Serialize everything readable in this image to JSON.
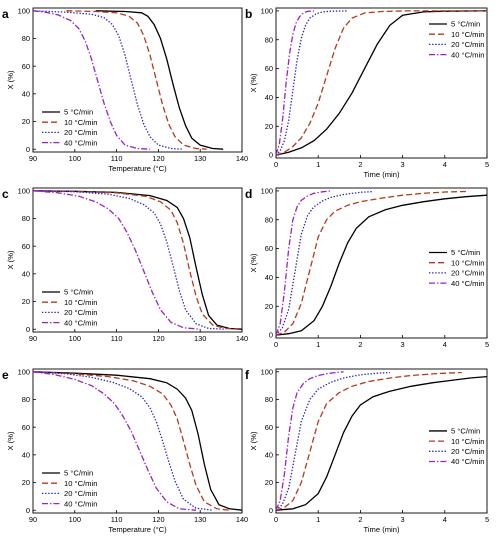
{
  "colors": {
    "s5": "#000000",
    "s10": "#b5391f",
    "s20": "#2424c8",
    "s40": "#9a22c4",
    "axis": "#000000"
  },
  "chart_data": [
    {
      "panel": "a",
      "type": "line",
      "xlabel": "Temperature (°C)",
      "ylabel": "X (%)",
      "xlim": [
        90,
        140
      ],
      "ylim": [
        -2,
        102
      ],
      "xticks": [
        90,
        100,
        110,
        120,
        130,
        140
      ],
      "yticks": [
        0,
        20,
        40,
        60,
        80,
        100
      ],
      "legend": "lower-left",
      "series": [
        {
          "name": "5 °C/min",
          "style": "solid",
          "color": "#000000",
          "x": [
            105,
            112,
            116,
            117.5,
            119,
            120.5,
            122,
            123.5,
            125,
            126.5,
            128,
            130,
            133,
            135.5
          ],
          "y": [
            100,
            99.5,
            98.5,
            96,
            90,
            80,
            65,
            47,
            30,
            17,
            8,
            3,
            0.5,
            0
          ]
        },
        {
          "name": "10 °C/min",
          "style": "dashed",
          "color": "#b5391f",
          "x": [
            98,
            105,
            110,
            113,
            115,
            116.5,
            118,
            119.5,
            121,
            122.5,
            124,
            126,
            129,
            131.5
          ],
          "y": [
            100,
            99.5,
            98.5,
            96,
            91,
            82,
            68,
            50,
            32,
            18,
            9,
            3,
            0.5,
            0
          ]
        },
        {
          "name": "20 °C/min",
          "style": "dotted",
          "color": "#2424c8",
          "x": [
            90,
            98,
            104,
            107,
            109,
            110.5,
            112,
            113.5,
            115,
            116.5,
            118,
            120,
            123,
            126
          ],
          "y": [
            100,
            99,
            97.5,
            95,
            90,
            82,
            68,
            50,
            32,
            18,
            9,
            3,
            0.5,
            0
          ]
        },
        {
          "name": "40 °C/min",
          "style": "dashdot",
          "color": "#9a22c4",
          "x": [
            90,
            93,
            96,
            99,
            101,
            102.5,
            104,
            105.5,
            107,
            108.5,
            110,
            112,
            115,
            118
          ],
          "y": [
            100,
            99,
            97,
            93,
            87,
            78,
            65,
            49,
            33,
            20,
            10,
            3,
            0.5,
            0
          ]
        }
      ]
    },
    {
      "panel": "b",
      "type": "line",
      "xlabel": "Time (min)",
      "ylabel": "X (%)",
      "xlim": [
        0,
        5
      ],
      "ylim": [
        -2,
        102
      ],
      "xticks": [
        0,
        1,
        2,
        3,
        4,
        5
      ],
      "yticks": [
        0,
        20,
        40,
        60,
        80,
        100
      ],
      "legend": "top-right",
      "series": [
        {
          "name": "5 °C/min",
          "style": "solid",
          "color": "#000000",
          "x": [
            0,
            0.3,
            0.6,
            0.9,
            1.2,
            1.5,
            1.8,
            2.1,
            2.4,
            2.7,
            3.0,
            3.5,
            4.0,
            5.0
          ],
          "y": [
            0,
            2,
            5,
            10,
            18,
            29,
            43,
            60,
            77,
            90,
            97,
            99.3,
            99.8,
            100
          ]
        },
        {
          "name": "10 °C/min",
          "style": "dashed",
          "color": "#b5391f",
          "x": [
            0,
            0.2,
            0.4,
            0.6,
            0.8,
            1.0,
            1.2,
            1.4,
            1.6,
            1.8,
            2.1,
            2.5,
            3.0,
            5.0
          ],
          "y": [
            0,
            2,
            6,
            12,
            22,
            36,
            55,
            74,
            88,
            95,
            98.5,
            99.6,
            100,
            100
          ]
        },
        {
          "name": "20 °C/min",
          "style": "dotted",
          "color": "#2424c8",
          "x": [
            0,
            0.1,
            0.2,
            0.3,
            0.4,
            0.5,
            0.6,
            0.7,
            0.8,
            0.95,
            1.1,
            1.3,
            1.7
          ],
          "y": [
            0,
            3,
            10,
            24,
            45,
            66,
            81,
            90,
            95,
            98,
            99.3,
            99.8,
            100
          ]
        },
        {
          "name": "40 °C/min",
          "style": "dashdot",
          "color": "#9a22c4",
          "x": [
            0,
            0.08,
            0.16,
            0.24,
            0.32,
            0.4,
            0.48,
            0.56,
            0.65,
            0.75,
            0.9
          ],
          "y": [
            0,
            8,
            26,
            50,
            70,
            84,
            92,
            96,
            98.5,
            99.7,
            100
          ]
        }
      ]
    },
    {
      "panel": "c",
      "type": "line",
      "xlabel": "",
      "ylabel": "X (%)",
      "xlim": [
        90,
        140
      ],
      "ylim": [
        -2,
        102
      ],
      "xticks": [
        90,
        100,
        110,
        120,
        130,
        140
      ],
      "yticks": [
        0,
        20,
        40,
        60,
        80,
        100
      ],
      "legend": "lower-left",
      "series": [
        {
          "name": "5 °C/min",
          "style": "solid",
          "color": "#000000",
          "x": [
            90,
            100,
            110,
            118,
            122,
            124.5,
            126,
            127.5,
            129,
            130.5,
            132,
            134,
            137,
            140
          ],
          "y": [
            100,
            99.6,
            98.8,
            96.5,
            93,
            88,
            80,
            66,
            45,
            25,
            10,
            3,
            0.5,
            0
          ]
        },
        {
          "name": "10 °C/min",
          "style": "dashed",
          "color": "#b5391f",
          "x": [
            90,
            100,
            110,
            117,
            120.5,
            123,
            124.5,
            126,
            127.5,
            129,
            130.5,
            133,
            136,
            139
          ],
          "y": [
            100,
            99.5,
            98.5,
            96,
            92,
            86,
            77,
            62,
            42,
            24,
            11,
            3,
            0.5,
            0
          ]
        },
        {
          "name": "20 °C/min",
          "style": "dotted",
          "color": "#2424c8",
          "x": [
            90,
            100,
            108,
            113,
            116.5,
            119,
            120.5,
            122,
            123.5,
            125,
            126.5,
            129,
            132,
            136
          ],
          "y": [
            100,
            99.3,
            97.5,
            94.5,
            90,
            84,
            76,
            63,
            46,
            28,
            14,
            4,
            0.5,
            0
          ]
        },
        {
          "name": "40 °C/min",
          "style": "dashdot",
          "color": "#9a22c4",
          "x": [
            90,
            96,
            101,
            105,
            108,
            110.5,
            112.5,
            114.5,
            116.5,
            118.5,
            120.5,
            123,
            126,
            130
          ],
          "y": [
            100,
            98.5,
            96,
            92,
            87,
            80,
            70,
            57,
            42,
            27,
            14,
            5,
            1,
            0
          ]
        }
      ]
    },
    {
      "panel": "d",
      "type": "line",
      "xlabel": "",
      "ylabel": "X (%)",
      "xlim": [
        0,
        5
      ],
      "ylim": [
        -2,
        102
      ],
      "xticks": [
        0,
        1,
        2,
        3,
        4,
        5
      ],
      "yticks": [
        0,
        20,
        40,
        60,
        80,
        100
      ],
      "legend": "lower-right",
      "series": [
        {
          "name": "5 °C/min",
          "style": "solid",
          "color": "#000000",
          "x": [
            0,
            0.3,
            0.6,
            0.9,
            1.1,
            1.3,
            1.5,
            1.7,
            1.9,
            2.2,
            2.6,
            3.0,
            3.5,
            4.0,
            4.5,
            5.0
          ],
          "y": [
            0,
            1,
            3,
            10,
            20,
            34,
            50,
            64,
            74,
            82,
            87,
            90,
            92.5,
            94.5,
            96,
            97
          ]
        },
        {
          "name": "10 °C/min",
          "style": "dashed",
          "color": "#b5391f",
          "x": [
            0,
            0.2,
            0.4,
            0.6,
            0.8,
            1.0,
            1.2,
            1.4,
            1.7,
            2.0,
            2.5,
            3.0,
            3.5,
            4.0,
            4.5
          ],
          "y": [
            0,
            2,
            8,
            22,
            45,
            68,
            80,
            86,
            90,
            92.5,
            95,
            97,
            98.3,
            99.2,
            99.6
          ]
        },
        {
          "name": "20 °C/min",
          "style": "dotted",
          "color": "#2424c8",
          "x": [
            0,
            0.15,
            0.3,
            0.45,
            0.6,
            0.75,
            0.9,
            1.1,
            1.3,
            1.6,
            2.0,
            2.3
          ],
          "y": [
            0,
            5,
            18,
            44,
            70,
            83,
            89,
            93,
            95.5,
            97.5,
            99,
            99.5
          ]
        },
        {
          "name": "40 °C/min",
          "style": "dashdot",
          "color": "#9a22c4",
          "x": [
            0,
            0.1,
            0.2,
            0.3,
            0.4,
            0.5,
            0.6,
            0.75,
            0.9,
            1.1,
            1.3
          ],
          "y": [
            0,
            8,
            30,
            60,
            80,
            89,
            93.5,
            96.5,
            98.3,
            99.4,
            100
          ]
        }
      ]
    },
    {
      "panel": "e",
      "type": "line",
      "xlabel": "Temperature (°C)",
      "ylabel": "X (%)",
      "xlim": [
        90,
        140
      ],
      "ylim": [
        -2,
        102
      ],
      "xticks": [
        90,
        100,
        110,
        120,
        130,
        140
      ],
      "yticks": [
        0,
        20,
        40,
        60,
        80,
        100
      ],
      "legend": "lower-left",
      "series": [
        {
          "name": "5 °C/min",
          "style": "solid",
          "color": "#000000",
          "x": [
            90,
            100,
            110,
            118,
            122,
            124.5,
            126.5,
            128,
            129.5,
            131,
            132.5,
            134.5,
            137,
            140
          ],
          "y": [
            100,
            99,
            97.5,
            95,
            92,
            87.5,
            81,
            72,
            55,
            33,
            15,
            4,
            1,
            0
          ]
        },
        {
          "name": "10 °C/min",
          "style": "dashed",
          "color": "#b5391f",
          "x": [
            90,
            100,
            108,
            114,
            118,
            121,
            123,
            124.5,
            126,
            127.5,
            129,
            131,
            134,
            137
          ],
          "y": [
            100,
            98.5,
            96.5,
            93.5,
            89.5,
            84,
            76,
            66,
            50,
            33,
            18,
            6,
            1,
            0
          ]
        },
        {
          "name": "20 °C/min",
          "style": "dotted",
          "color": "#2424c8",
          "x": [
            90,
            98,
            104,
            109,
            113,
            116,
            118,
            119.5,
            121,
            122.5,
            124,
            126,
            129,
            133
          ],
          "y": [
            100,
            98.5,
            96,
            92.5,
            88,
            82,
            74,
            64,
            50,
            35,
            21,
            8,
            1.5,
            0
          ]
        },
        {
          "name": "40 °C/min",
          "style": "dashdot",
          "color": "#9a22c4",
          "x": [
            90,
            95,
            100,
            104,
            107,
            109.5,
            111.5,
            113.5,
            115.5,
            117.5,
            119.5,
            122,
            125,
            129
          ],
          "y": [
            100,
            98,
            94.5,
            90,
            84,
            77,
            68,
            57,
            43,
            29,
            16,
            6,
            1,
            0
          ]
        }
      ]
    },
    {
      "panel": "f",
      "type": "line",
      "xlabel": "Time (min)",
      "ylabel": "X (%)",
      "xlim": [
        0,
        5
      ],
      "ylim": [
        -2,
        102
      ],
      "xticks": [
        0,
        1,
        2,
        3,
        4,
        5
      ],
      "yticks": [
        0,
        20,
        40,
        60,
        80,
        100
      ],
      "legend": "lower-right",
      "series": [
        {
          "name": "5 °C/min",
          "style": "solid",
          "color": "#000000",
          "x": [
            0,
            0.4,
            0.7,
            1.0,
            1.2,
            1.4,
            1.6,
            1.8,
            2.0,
            2.3,
            2.7,
            3.2,
            3.7,
            4.2,
            4.6,
            5.0
          ],
          "y": [
            0,
            1,
            4,
            12,
            24,
            40,
            56,
            68,
            76,
            82,
            86,
            89.5,
            92,
            94,
            95.5,
            96.5
          ]
        },
        {
          "name": "10 °C/min",
          "style": "dashed",
          "color": "#b5391f",
          "x": [
            0,
            0.2,
            0.4,
            0.6,
            0.8,
            1.0,
            1.2,
            1.5,
            1.8,
            2.2,
            2.7,
            3.2,
            3.8,
            4.4
          ],
          "y": [
            0,
            2,
            7,
            20,
            42,
            64,
            77,
            85,
            89.5,
            93,
            95.5,
            97.3,
            98.7,
            99.5
          ]
        },
        {
          "name": "20 °C/min",
          "style": "dotted",
          "color": "#2424c8",
          "x": [
            0,
            0.15,
            0.3,
            0.45,
            0.6,
            0.8,
            1.0,
            1.3,
            1.6,
            2.0,
            2.4,
            2.7
          ],
          "y": [
            0,
            4,
            16,
            40,
            64,
            80,
            87.5,
            92.5,
            95.5,
            97.8,
            99,
            99.5
          ]
        },
        {
          "name": "40 °C/min",
          "style": "dashdot",
          "color": "#9a22c4",
          "x": [
            0,
            0.1,
            0.2,
            0.3,
            0.4,
            0.5,
            0.65,
            0.8,
            1.0,
            1.2,
            1.4,
            1.6
          ],
          "y": [
            0,
            7,
            26,
            54,
            74,
            85,
            91.5,
            95,
            97.3,
            98.6,
            99.4,
            100
          ]
        }
      ]
    }
  ]
}
